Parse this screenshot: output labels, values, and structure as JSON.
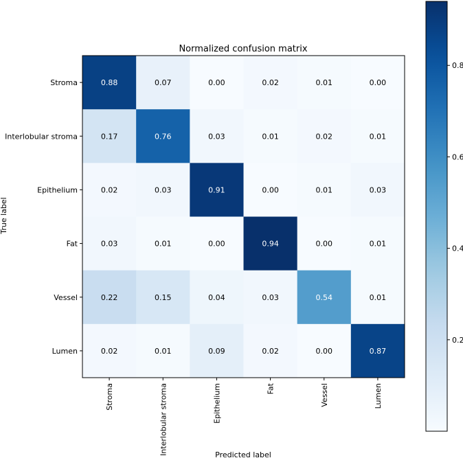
{
  "chart_data": {
    "type": "heatmap",
    "title": "Normalized confusion matrix",
    "xlabel": "Predicted label",
    "ylabel": "True label",
    "rows": [
      "Stroma",
      "Interlobular stroma",
      "Epithelium",
      "Fat",
      "Vessel",
      "Lumen"
    ],
    "columns": [
      "Stroma",
      "Interlobular stroma",
      "Epithelium",
      "Fat",
      "Vessel",
      "Lumen"
    ],
    "values": [
      [
        0.88,
        0.07,
        0.0,
        0.02,
        0.01,
        0.0
      ],
      [
        0.17,
        0.76,
        0.03,
        0.01,
        0.02,
        0.01
      ],
      [
        0.02,
        0.03,
        0.91,
        0.0,
        0.01,
        0.03
      ],
      [
        0.03,
        0.01,
        0.0,
        0.94,
        0.0,
        0.01
      ],
      [
        0.22,
        0.15,
        0.04,
        0.03,
        0.54,
        0.01
      ],
      [
        0.02,
        0.01,
        0.09,
        0.02,
        0.0,
        0.87
      ]
    ],
    "colorbar": {
      "colormap": "Blues",
      "range": [
        0.0,
        0.94
      ],
      "ticks": [
        0.2,
        0.4,
        0.6,
        0.8
      ],
      "tick_labels": [
        "0.2",
        "0.4",
        "0.6",
        "0.8"
      ]
    },
    "value_format_decimals": 2,
    "text_color_threshold": 0.47
  }
}
